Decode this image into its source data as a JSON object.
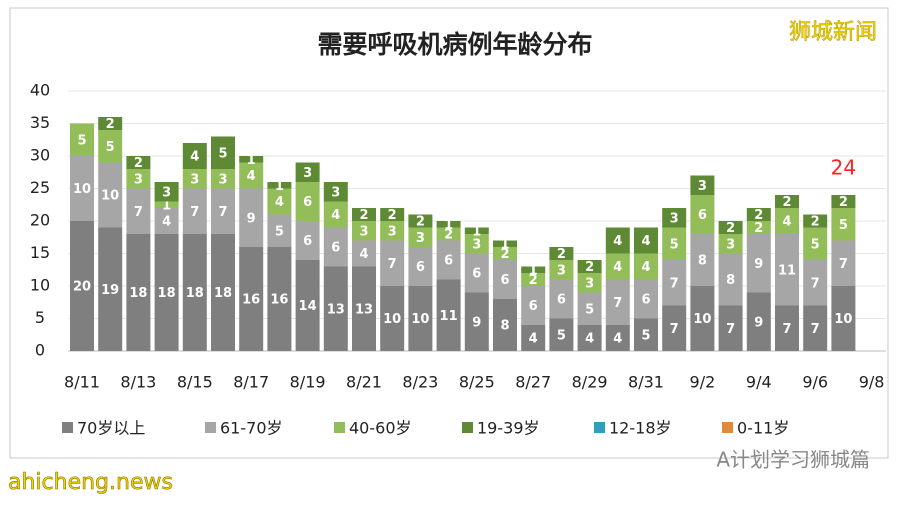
{
  "chart_data": {
    "type": "stacked_bar",
    "title": "需要呼吸机病例年龄分布",
    "categories": [
      "8/11",
      null,
      "8/13",
      null,
      "8/15",
      null,
      "8/17",
      null,
      "8/19",
      null,
      "8/21",
      null,
      "8/23",
      null,
      "8/25",
      null,
      "8/27",
      null,
      "8/29",
      null,
      "8/31",
      null,
      "9/2",
      null,
      "9/4",
      null,
      "9/6",
      null,
      "9/8"
    ],
    "series": [
      {
        "name": "70岁以上",
        "color": "#7f7f7f",
        "values": [
          20,
          19,
          18,
          18,
          18,
          18,
          16,
          16,
          14,
          13,
          13,
          10,
          10,
          11,
          9,
          8,
          4,
          5,
          4,
          4,
          5,
          7,
          10,
          7,
          9,
          7,
          7,
          10,
          null
        ]
      },
      {
        "name": "61-70岁",
        "color": "#a6a6a6",
        "values": [
          10,
          10,
          7,
          4,
          7,
          7,
          9,
          5,
          6,
          6,
          4,
          7,
          6,
          6,
          6,
          6,
          6,
          6,
          5,
          7,
          6,
          7,
          8,
          8,
          9,
          11,
          7,
          7,
          null
        ]
      },
      {
        "name": "40-60岁",
        "color": "#93bd58",
        "values": [
          5,
          5,
          3,
          1,
          3,
          3,
          4,
          4,
          6,
          4,
          3,
          3,
          3,
          2,
          3,
          2,
          2,
          3,
          3,
          4,
          4,
          5,
          6,
          3,
          2,
          4,
          5,
          5,
          null
        ]
      },
      {
        "name": "19-39岁",
        "color": "#5f8a35",
        "values": [
          0,
          2,
          2,
          3,
          4,
          5,
          1,
          1,
          3,
          3,
          2,
          2,
          2,
          1,
          1,
          1,
          1,
          2,
          2,
          4,
          4,
          3,
          3,
          2,
          2,
          2,
          2,
          2,
          null
        ]
      },
      {
        "name": "12-18岁",
        "color": "#2f9fc0",
        "values": [
          0,
          0,
          0,
          0,
          0,
          0,
          0,
          0,
          0,
          0,
          0,
          0,
          0,
          0,
          0,
          0,
          0,
          0,
          0,
          0,
          0,
          0,
          0,
          0,
          0,
          0,
          0,
          0,
          null
        ]
      },
      {
        "name": "0-11岁",
        "color": "#e08a3c",
        "values": [
          0,
          0,
          0,
          0,
          0,
          0,
          0,
          0,
          0,
          0,
          0,
          0,
          0,
          0,
          0,
          0,
          0,
          0,
          0,
          0,
          0,
          0,
          0,
          0,
          0,
          0,
          0,
          0,
          null
        ]
      }
    ],
    "ylim": [
      0,
      40
    ],
    "yticks": [
      0,
      5,
      10,
      15,
      20,
      25,
      30,
      35,
      40
    ],
    "grid": true,
    "annotation": {
      "text": "24",
      "index": 27,
      "color": "#ff2020"
    },
    "watermarks": [
      "狮城新闻",
      "ahicheng.news",
      "A计划学习狮城篇"
    ]
  }
}
